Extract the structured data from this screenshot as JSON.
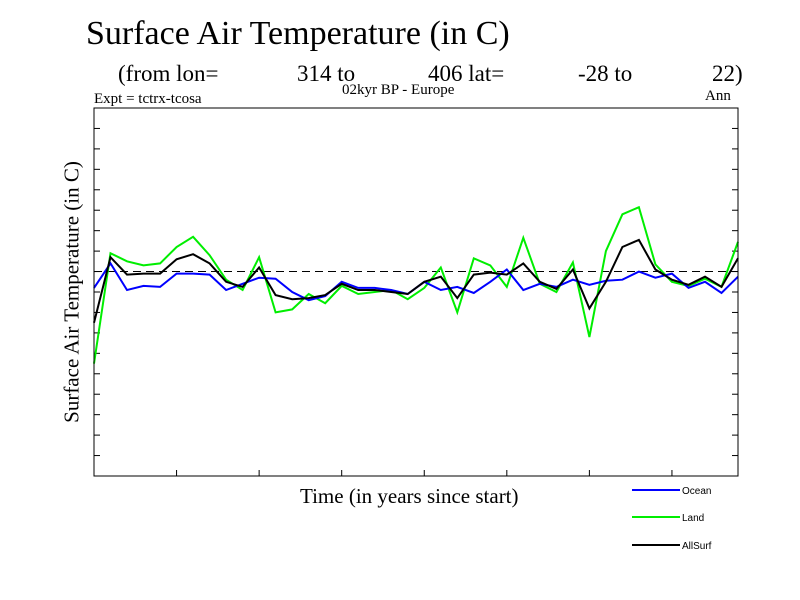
{
  "header": {
    "title": "Surface Air Temperature (in C)",
    "subtitle_lon_label": "(from lon=",
    "subtitle_lon_from": "314 to",
    "subtitle_lon_to_lat": "406 lat=",
    "subtitle_lat_from": "-28 to",
    "subtitle_lat_to": "22)",
    "experiment": "Expt = tctrx-tcosa",
    "region": "02kyr BP - Europe",
    "period": "Ann"
  },
  "chart_data": {
    "type": "line",
    "title": "Surface Air Temperature (in C)",
    "xlabel": "Time (in years since start)",
    "ylabel": "Surface Air Temperature (in C)",
    "x": [
      0,
      1,
      2,
      3,
      4,
      5,
      6,
      7,
      8,
      9,
      10,
      11,
      12,
      13,
      14,
      15,
      16,
      17,
      18,
      19,
      20,
      21,
      22,
      23,
      24,
      25,
      26,
      27,
      28,
      29,
      30,
      31,
      32,
      33,
      34,
      35,
      36,
      37,
      38,
      39
    ],
    "xlim": [
      0,
      39
    ],
    "ylim": [
      -1.0,
      0.8
    ],
    "ytick_step": 0.1,
    "xtick_step": 5,
    "reference_line": 0,
    "legend_position": "bottom-right, outside plot",
    "series": [
      {
        "name": "Ocean",
        "color": "#0000ff",
        "values": [
          -0.08,
          0.04,
          -0.09,
          -0.07,
          -0.075,
          -0.01,
          -0.01,
          -0.015,
          -0.09,
          -0.06,
          -0.03,
          -0.035,
          -0.1,
          -0.14,
          -0.12,
          -0.05,
          -0.08,
          -0.08,
          -0.09,
          -0.11,
          -0.05,
          -0.09,
          -0.075,
          -0.105,
          -0.05,
          0.01,
          -0.09,
          -0.06,
          -0.075,
          -0.04,
          -0.065,
          -0.045,
          -0.04,
          0.0,
          -0.03,
          -0.01,
          -0.08,
          -0.05,
          -0.105,
          -0.025
        ]
      },
      {
        "name": "Land",
        "color": "#00ee00",
        "values": [
          -0.45,
          0.09,
          0.05,
          0.03,
          0.04,
          0.12,
          0.17,
          0.08,
          -0.04,
          -0.09,
          0.07,
          -0.2,
          -0.185,
          -0.11,
          -0.155,
          -0.07,
          -0.11,
          -0.1,
          -0.09,
          -0.135,
          -0.08,
          0.02,
          -0.2,
          0.065,
          0.03,
          -0.075,
          0.165,
          -0.06,
          -0.1,
          0.045,
          -0.32,
          0.1,
          0.28,
          0.315,
          0.035,
          -0.05,
          -0.07,
          -0.035,
          -0.075,
          0.145
        ]
      },
      {
        "name": "AllSurf",
        "color": "#000000",
        "values": [
          -0.25,
          0.07,
          -0.015,
          -0.01,
          -0.01,
          0.06,
          0.085,
          0.04,
          -0.05,
          -0.075,
          0.02,
          -0.115,
          -0.135,
          -0.13,
          -0.115,
          -0.06,
          -0.09,
          -0.09,
          -0.1,
          -0.11,
          -0.05,
          -0.025,
          -0.13,
          -0.015,
          -0.005,
          -0.015,
          0.04,
          -0.05,
          -0.085,
          0.01,
          -0.18,
          -0.05,
          0.12,
          0.155,
          0.01,
          -0.04,
          -0.065,
          -0.025,
          -0.075,
          0.065
        ]
      }
    ]
  }
}
